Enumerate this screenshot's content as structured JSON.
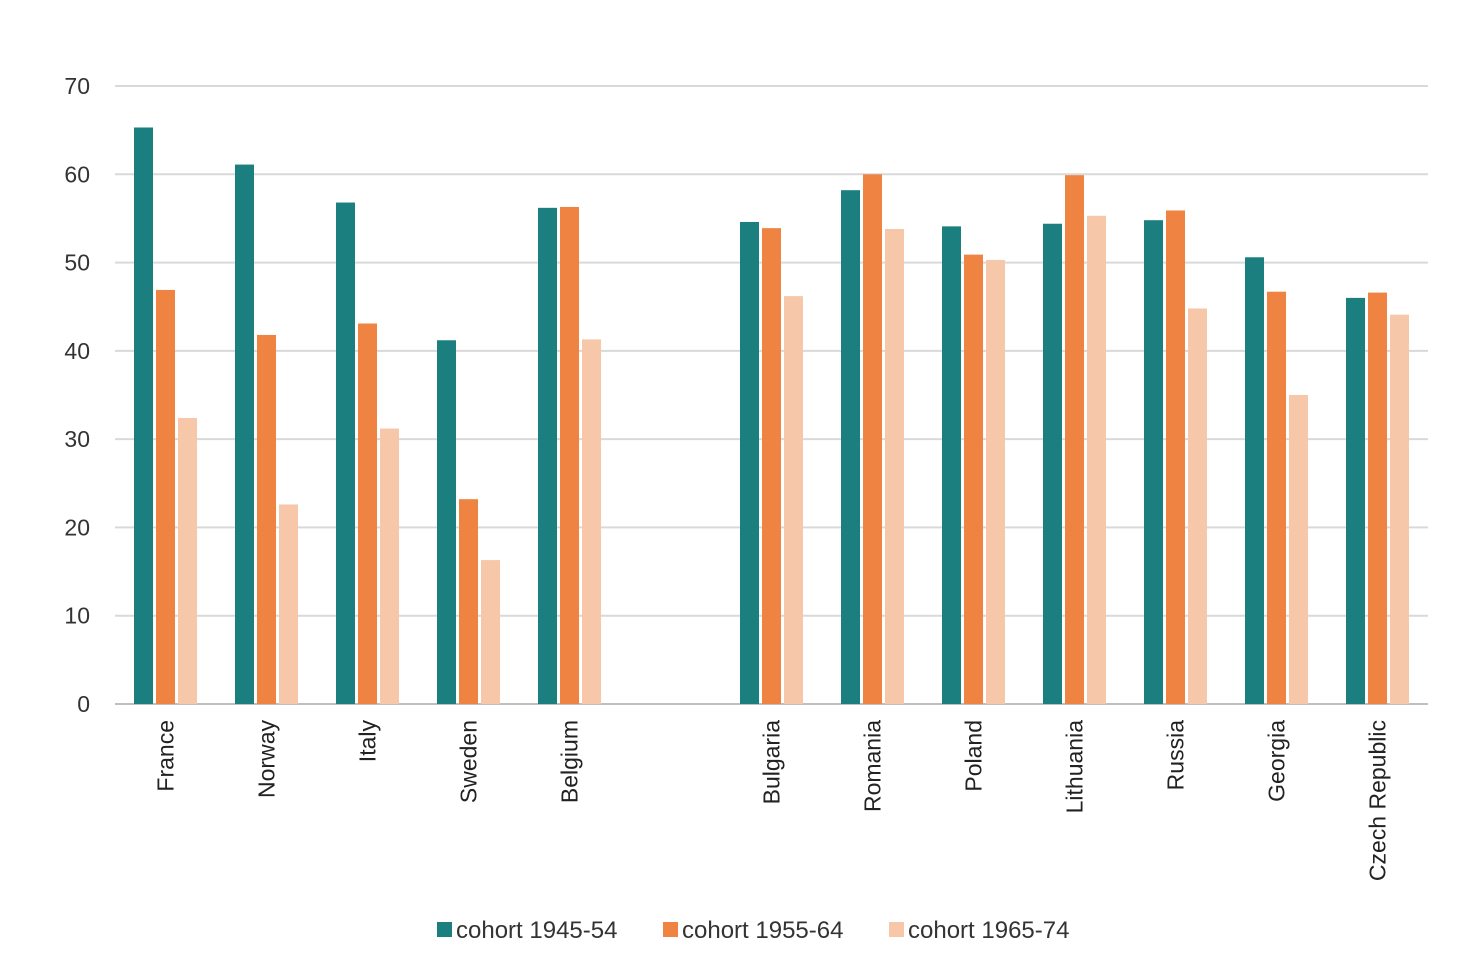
{
  "chart_data": {
    "type": "bar",
    "categories": [
      "France",
      "Norway",
      "Italy",
      "Sweden",
      "Belgium",
      "",
      "Bulgaria",
      "Romania",
      "Poland",
      "Lithuania",
      "Russia",
      "Georgia",
      "Czech Republic"
    ],
    "series": [
      {
        "name": "cohort 1945-54",
        "color": "#1b7f80",
        "values": [
          65.3,
          61.1,
          56.8,
          41.2,
          56.2,
          null,
          54.6,
          58.2,
          54.1,
          54.4,
          54.8,
          50.6,
          46.0
        ]
      },
      {
        "name": "cohort 1955-64",
        "color": "#ef8342",
        "values": [
          46.9,
          41.8,
          43.1,
          23.2,
          56.3,
          null,
          53.9,
          60.0,
          50.9,
          59.9,
          55.9,
          46.7,
          46.6
        ]
      },
      {
        "name": "cohort 1965-74",
        "color": "#f6c7a9",
        "values": [
          32.4,
          22.6,
          31.2,
          16.3,
          41.3,
          null,
          46.2,
          53.8,
          50.3,
          55.3,
          44.8,
          35.0,
          44.1
        ]
      }
    ],
    "yticks": [
      "0",
      "10",
      "20",
      "30",
      "40",
      "50",
      "60",
      "70"
    ],
    "ylim": [
      0,
      70
    ],
    "grid": true,
    "legend_position": "bottom"
  }
}
